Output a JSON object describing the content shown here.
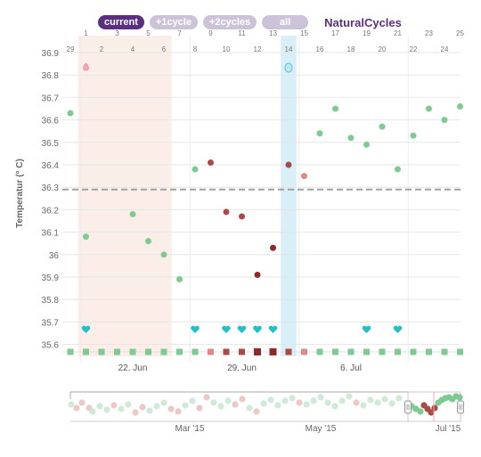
{
  "tabs": [
    {
      "label": "current",
      "active": true
    },
    {
      "label": "+1cycle",
      "active": false
    },
    {
      "label": "+2cycles",
      "active": false
    },
    {
      "label": "all",
      "active": false
    }
  ],
  "brand": "NaturalCycles",
  "colors": {
    "brand": "#5a2f82",
    "green": "#7ecb92",
    "red": "#a94a46",
    "dark_red": "#8c2a2a",
    "pink_square": "#df8a86",
    "teal": "#22bfc7",
    "period_band": "#fbeee8",
    "ovulation_band": "#d8eef8",
    "coverline": "#a0a0a0"
  },
  "chart_data": {
    "type": "scatter",
    "ylabel": "Temperatur (° C)",
    "ylim": [
      35.55,
      36.95
    ],
    "yticks": [
      "35.6",
      "35.7",
      "35.8",
      "35.9",
      "36",
      "36.1",
      "36.2",
      "36.3",
      "36.4",
      "36.5",
      "36.6",
      "36.7",
      "36.8",
      "36.9"
    ],
    "day_labels": [
      "29",
      "1",
      "2",
      "3",
      "4",
      "5",
      "6",
      "7",
      "8",
      "9",
      "10",
      "11",
      "12",
      "13",
      "14",
      "15",
      "16",
      "17",
      "18",
      "19",
      "20",
      "21",
      "22",
      "23",
      "24",
      "25"
    ],
    "x_date_labels": [
      {
        "day_index": 4,
        "label": "22. Jun"
      },
      {
        "day_index": 11,
        "label": "29. Jun"
      },
      {
        "day_index": 18,
        "label": "6. Jul"
      }
    ],
    "period_days": [
      1,
      6
    ],
    "ovulation_day": 14,
    "coverline": 36.29,
    "points": [
      {
        "d": 0,
        "t": 36.63,
        "c": "green"
      },
      {
        "d": 1,
        "t": 36.08,
        "c": "green"
      },
      {
        "d": 4,
        "t": 36.18,
        "c": "green"
      },
      {
        "d": 5,
        "t": 36.06,
        "c": "green"
      },
      {
        "d": 6,
        "t": 36.0,
        "c": "green"
      },
      {
        "d": 7,
        "t": 35.89,
        "c": "green"
      },
      {
        "d": 8,
        "t": 36.38,
        "c": "green"
      },
      {
        "d": 9,
        "t": 36.41,
        "c": "red"
      },
      {
        "d": 10,
        "t": 36.19,
        "c": "red"
      },
      {
        "d": 11,
        "t": 36.17,
        "c": "red"
      },
      {
        "d": 12,
        "t": 35.91,
        "c": "dark_red"
      },
      {
        "d": 13,
        "t": 36.03,
        "c": "dark_red"
      },
      {
        "d": 14,
        "t": 36.4,
        "c": "red"
      },
      {
        "d": 15,
        "t": 36.35,
        "c": "pink_square"
      },
      {
        "d": 16,
        "t": 36.54,
        "c": "green"
      },
      {
        "d": 17,
        "t": 36.65,
        "c": "green"
      },
      {
        "d": 18,
        "t": 36.52,
        "c": "green"
      },
      {
        "d": 19,
        "t": 36.49,
        "c": "green"
      },
      {
        "d": 20,
        "t": 36.57,
        "c": "green"
      },
      {
        "d": 21,
        "t": 36.38,
        "c": "green"
      },
      {
        "d": 22,
        "t": 36.53,
        "c": "green"
      },
      {
        "d": 23,
        "t": 36.65,
        "c": "green"
      },
      {
        "d": 24,
        "t": 36.6,
        "c": "green"
      },
      {
        "d": 25,
        "t": 36.66,
        "c": "green"
      }
    ],
    "period_drop_day": 1,
    "ovulation_test_day": 14,
    "hearts": [
      1,
      8,
      10,
      11,
      12,
      13,
      19,
      21
    ],
    "day_markers": [
      "green",
      "green",
      "green",
      "green",
      "green",
      "green",
      "green",
      "green",
      "green",
      "pink_square",
      "red",
      "red",
      "dark_red",
      "dark_red",
      "red",
      "pink_square",
      "green",
      "green",
      "green",
      "green",
      "green",
      "green",
      "green",
      "green",
      "green",
      "green"
    ],
    "navigator_labels": [
      "Mar '15",
      "May '15",
      "Jul '15"
    ]
  }
}
